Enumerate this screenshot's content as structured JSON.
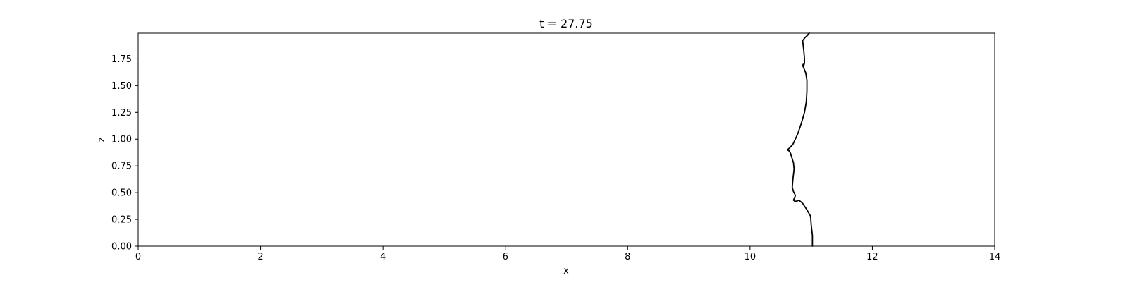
{
  "chart_data": {
    "type": "line",
    "title": "t = 27.75",
    "xlabel": "x",
    "ylabel": "z",
    "xlim": [
      0,
      14
    ],
    "ylim": [
      0,
      1.99
    ],
    "xticks": [
      "0",
      "2",
      "4",
      "6",
      "8",
      "10",
      "12",
      "14"
    ],
    "yticks": [
      "0.00",
      "0.25",
      "0.50",
      "0.75",
      "1.00",
      "1.25",
      "1.50",
      "1.75"
    ],
    "grid": false,
    "line_color": "#000000",
    "series": [
      {
        "x": [
          11.02,
          11.02,
          11.0,
          10.99,
          10.93,
          10.86,
          10.8,
          10.76,
          10.73,
          10.71,
          10.74,
          10.73,
          10.71,
          10.69,
          10.7,
          10.71,
          10.72,
          10.71,
          10.66,
          10.64,
          10.61,
          10.63,
          10.65,
          10.7,
          10.78,
          10.84,
          10.89,
          10.92,
          10.93,
          10.93,
          10.91,
          10.86,
          10.87,
          10.88,
          10.89,
          10.89,
          10.88,
          10.86,
          10.9,
          10.92,
          10.94,
          10.95,
          10.97
        ],
        "y": [
          0.0,
          0.1,
          0.2,
          0.28,
          0.34,
          0.4,
          0.43,
          0.42,
          0.42,
          0.43,
          0.47,
          0.49,
          0.51,
          0.55,
          0.62,
          0.67,
          0.72,
          0.78,
          0.87,
          0.89,
          0.9,
          0.91,
          0.92,
          0.95,
          1.05,
          1.15,
          1.25,
          1.35,
          1.45,
          1.55,
          1.62,
          1.69,
          1.7,
          1.69,
          1.71,
          1.75,
          1.82,
          1.92,
          1.95,
          1.96,
          1.97,
          1.98,
          1.99
        ]
      }
    ]
  }
}
